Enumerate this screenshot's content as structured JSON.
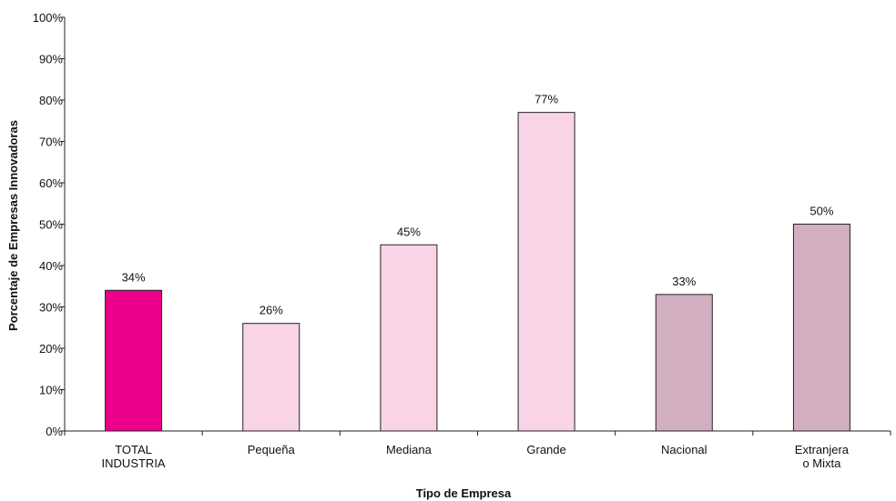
{
  "chart_data": {
    "type": "bar",
    "categories": [
      [
        "TOTAL",
        "INDUSTRIA"
      ],
      [
        "Pequeña"
      ],
      [
        "Mediana"
      ],
      [
        "Grande"
      ],
      [
        "Nacional"
      ],
      [
        "Extranjera",
        "o Mixta"
      ]
    ],
    "values": [
      34,
      26,
      45,
      77,
      33,
      50
    ],
    "value_labels": [
      "34%",
      "26%",
      "45%",
      "77%",
      "33%",
      "50%"
    ],
    "bar_colors": [
      "#ec008c",
      "#f9d4e6",
      "#f9d4e6",
      "#f9d4e6",
      "#d1afc0",
      "#d1afc0"
    ],
    "xlabel": "Tipo de Empresa",
    "ylabel": "Porcentaje de Empresas Innovadoras",
    "ylim": [
      0,
      100
    ],
    "yticks": [
      "0%",
      "10%",
      "20%",
      "30%",
      "40%",
      "50%",
      "60%",
      "70%",
      "80%",
      "90%",
      "100%"
    ],
    "grid": false,
    "legend": "none"
  }
}
